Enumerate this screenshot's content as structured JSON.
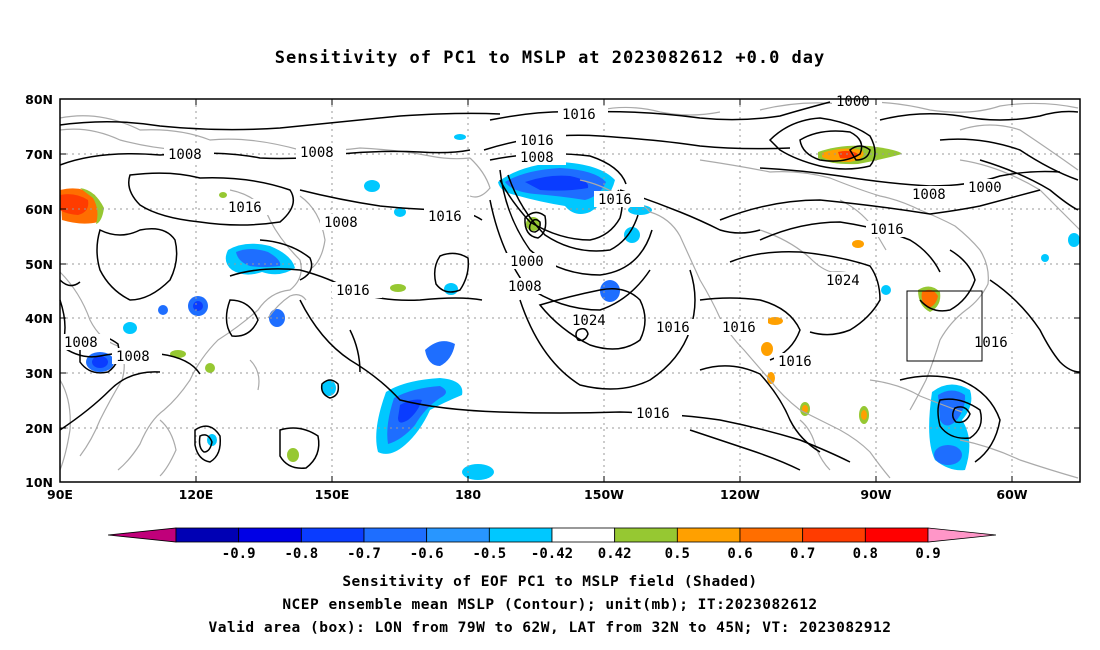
{
  "title": "Sensitivity of PC1 to MSLP at 2023082612 +0.0 day",
  "map": {
    "lon_labels": [
      "90E",
      "120E",
      "150E",
      "180",
      "150W",
      "120W",
      "90W",
      "60W"
    ],
    "lat_labels": [
      "80N",
      "70N",
      "60N",
      "50N",
      "40N",
      "30N",
      "20N",
      "10N"
    ],
    "contour_labels": [
      "1016",
      "1008",
      "1008",
      "1016",
      "1016",
      "1008",
      "1000",
      "1008",
      "1016",
      "1016",
      "1008",
      "1000",
      "1008",
      "1016",
      "1024",
      "1016",
      "1016",
      "1016",
      "1016",
      "1024",
      "1016",
      "1008",
      "1008",
      "1000",
      "1016"
    ],
    "box": {
      "lon_from": "79W",
      "lon_to": "62W",
      "lat_from": "32N",
      "lat_to": "45N"
    }
  },
  "colorbar": {
    "labels": [
      "-0.9",
      "-0.8",
      "-0.7",
      "-0.6",
      "-0.5",
      "-0.42",
      "0.42",
      "0.5",
      "0.6",
      "0.7",
      "0.8",
      "0.9"
    ],
    "colors": [
      "#c0007a",
      "#0000b4",
      "#0000e6",
      "#0a3cff",
      "#1e6eff",
      "#2896ff",
      "#00c8ff",
      "#ffffff",
      "#96c832",
      "#ffa000",
      "#ff6e00",
      "#ff3c00",
      "#ff0000",
      "#ff96c8"
    ]
  },
  "captions": {
    "line1": "Sensitivity of EOF PC1 to MSLP field (Shaded)",
    "line2": "NCEP ensemble mean MSLP (Contour); unit(mb); IT:2023082612",
    "line3": "Valid area (box): LON from 79W to 62W, LAT from 32N to 45N; VT: 2023082912"
  }
}
